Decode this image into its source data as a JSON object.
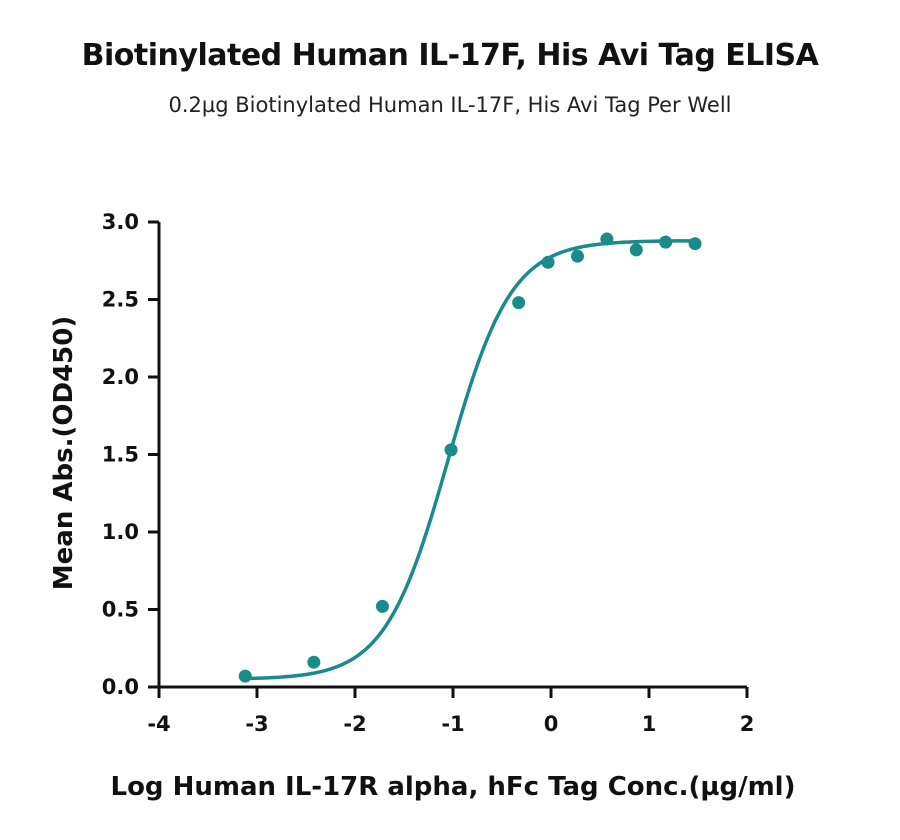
{
  "chart_data": {
    "type": "scatter",
    "title": "Biotinylated Human IL-17F, His Avi Tag ELISA",
    "subtitle": "0.2µg Biotinylated Human IL-17F, His Avi Tag Per Well",
    "xlabel": "Log Human IL-17R alpha, hFc Tag Conc.(µg/ml)",
    "ylabel": "Mean Abs.(OD450)",
    "xlim": [
      -4,
      2
    ],
    "ylim": [
      0,
      3.0
    ],
    "x_ticks": [
      -4,
      -3,
      -2,
      -1,
      0,
      1,
      2
    ],
    "x_tick_labels": [
      "-4",
      "-3",
      "-2",
      "-1",
      "0",
      "1",
      "2"
    ],
    "y_ticks": [
      0,
      0.5,
      1.0,
      1.5,
      2.0,
      2.5,
      3.0
    ],
    "y_tick_labels": [
      "0.0",
      "0.5",
      "1.0",
      "1.5",
      "2.0",
      "2.5",
      "3.0"
    ],
    "grid": false,
    "series": [
      {
        "color": "#1a8a8a",
        "points": [
          {
            "x": -3.12,
            "y": 0.07
          },
          {
            "x": -2.42,
            "y": 0.16
          },
          {
            "x": -1.72,
            "y": 0.52
          },
          {
            "x": -1.02,
            "y": 1.53
          },
          {
            "x": -0.33,
            "y": 2.48
          },
          {
            "x": -0.03,
            "y": 2.74
          },
          {
            "x": 0.27,
            "y": 2.78
          },
          {
            "x": 0.57,
            "y": 2.89
          },
          {
            "x": 0.87,
            "y": 2.82
          },
          {
            "x": 1.17,
            "y": 2.87
          },
          {
            "x": 1.47,
            "y": 2.86
          }
        ],
        "fit": {
          "model": "4PL",
          "bottom": 0.05,
          "top": 2.88,
          "logEC50": -1.05,
          "hill": 1.35,
          "x_range": [
            -3.12,
            1.47
          ]
        }
      }
    ]
  }
}
